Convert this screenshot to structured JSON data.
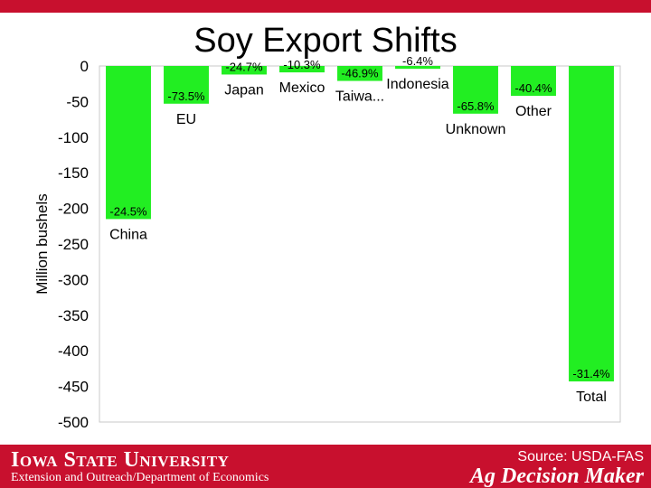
{
  "slide": {
    "title": "Soy Export Shifts",
    "university": "Iowa State University",
    "department": "Extension and Outreach/Department of Economics",
    "source": "Source: USDA-FAS",
    "program": "Ag Decision Maker",
    "accent_color": "#c8102e"
  },
  "chart_data": {
    "type": "bar",
    "title": "Soy Export Shifts",
    "ylabel": "Million bushels",
    "ylim": [
      -500,
      0
    ],
    "yticks": [
      0,
      -50,
      -100,
      -150,
      -200,
      -250,
      -300,
      -350,
      -400,
      -450,
      -500
    ],
    "bar_color": "#22ee22",
    "grid": false,
    "categories": [
      "China",
      "EU",
      "Japan",
      "Mexico",
      "Taiwa...",
      "Indonesia",
      "Unknown",
      "Other",
      "Total"
    ],
    "values": [
      -215,
      -53,
      -12,
      -9,
      -21,
      -4,
      -67,
      -42,
      -443
    ],
    "data_labels": [
      "-24.5%",
      "-73.5%",
      "-24.7%",
      "-10.3%",
      "-46.9%",
      "-6.4%",
      "-65.8%",
      "-40.4%",
      "-31.4%"
    ]
  }
}
